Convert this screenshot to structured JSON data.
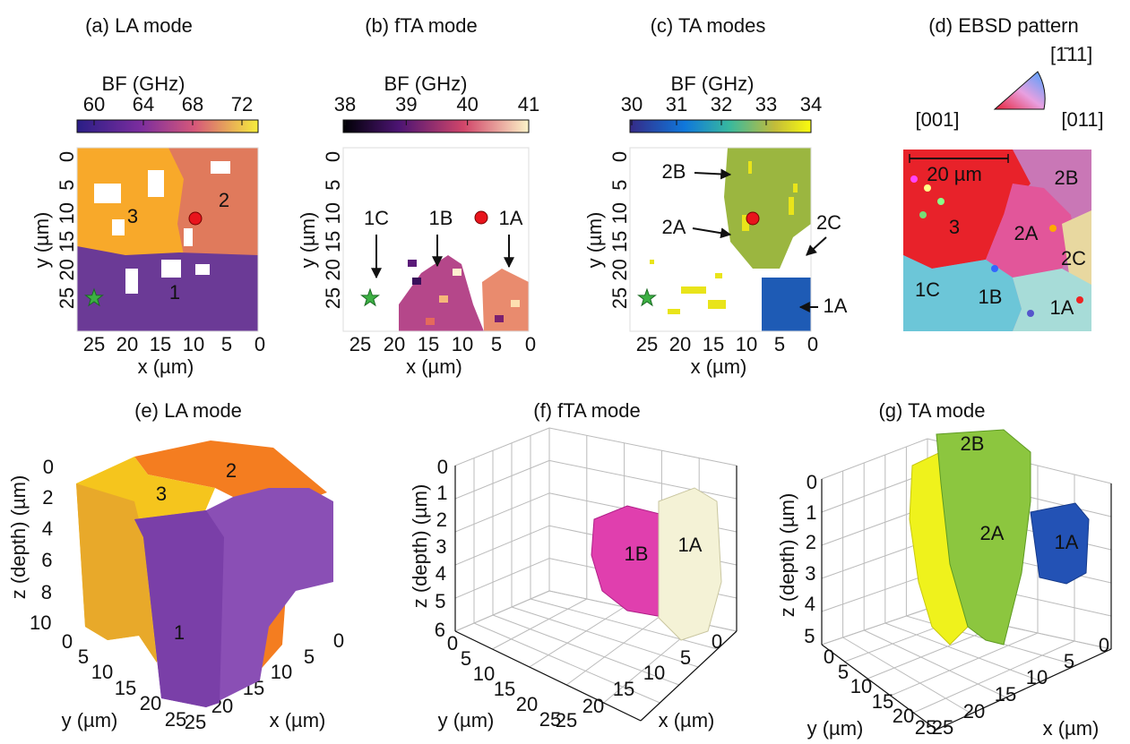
{
  "panels": {
    "a": {
      "title": "(a) LA mode",
      "colorbar_label": "BF (GHz)",
      "colorbar_ticks": [
        60,
        64,
        68,
        72
      ],
      "x_label": "x (µm)",
      "x_ticks": [
        25,
        20,
        15,
        10,
        5,
        0
      ],
      "y_label": "y (µm)",
      "y_ticks": [
        0,
        5,
        10,
        15,
        20,
        25
      ],
      "labels": [
        "3",
        "2",
        "1"
      ]
    },
    "b": {
      "title": "(b) fTA mode",
      "colorbar_label": "BF (GHz)",
      "colorbar_ticks": [
        38,
        39,
        40,
        41
      ],
      "x_label": "x (µm)",
      "x_ticks": [
        25,
        20,
        15,
        10,
        5,
        0
      ],
      "y_label": "y (µm)",
      "y_ticks": [
        0,
        5,
        10,
        15,
        20,
        25
      ],
      "labels": [
        "1C",
        "1B",
        "1A"
      ]
    },
    "c": {
      "title": "(c) TA modes",
      "colorbar_label": "BF (GHz)",
      "colorbar_ticks": [
        30,
        31,
        32,
        33,
        34
      ],
      "x_label": "x (µm)",
      "x_ticks": [
        25,
        20,
        15,
        10,
        5,
        0
      ],
      "y_label": "y (µm)",
      "y_ticks": [
        0,
        5,
        10,
        15,
        20,
        25
      ],
      "labels": [
        "2B",
        "2A",
        "2C",
        "1A"
      ]
    },
    "d": {
      "title": "(d) EBSD pattern",
      "triangle_labels": [
        "[1̄11]",
        "[001]",
        "[011]"
      ],
      "scale_bar": "20 µm",
      "labels": [
        "2B",
        "3",
        "2A",
        "2C",
        "1C",
        "1B",
        "1A"
      ]
    },
    "e": {
      "title": "(e) LA mode",
      "z_label": "z (depth) (µm)",
      "z_ticks": [
        0,
        2,
        4,
        6,
        8,
        10
      ],
      "y_label": "y (µm)",
      "y_ticks": [
        0,
        5,
        10,
        15,
        20,
        25
      ],
      "x_label": "x (µm)",
      "x_ticks": [
        25,
        20,
        15,
        10,
        5,
        0
      ],
      "labels": [
        "2",
        "3",
        "1"
      ]
    },
    "f": {
      "title": "(f) fTA mode",
      "z_label": "z (depth) (µm)",
      "z_ticks": [
        0,
        1,
        2,
        3,
        4,
        5,
        6
      ],
      "y_label": "y (µm)",
      "y_ticks": [
        0,
        5,
        10,
        15,
        20,
        25
      ],
      "x_label": "x (µm)",
      "x_ticks": [
        25,
        20,
        15,
        10,
        5,
        0
      ],
      "labels": [
        "1B",
        "1A"
      ]
    },
    "g": {
      "title": "(g) TA mode",
      "z_label": "z (depth) (µm)",
      "z_ticks": [
        0,
        1,
        2,
        3,
        4,
        5
      ],
      "y_label": "y (µm)",
      "y_ticks": [
        0,
        5,
        10,
        15,
        20,
        25
      ],
      "x_label": "x (µm)",
      "x_ticks": [
        25,
        20,
        15,
        10,
        5,
        0
      ],
      "labels": [
        "2B",
        "2A",
        "1A"
      ]
    }
  }
}
